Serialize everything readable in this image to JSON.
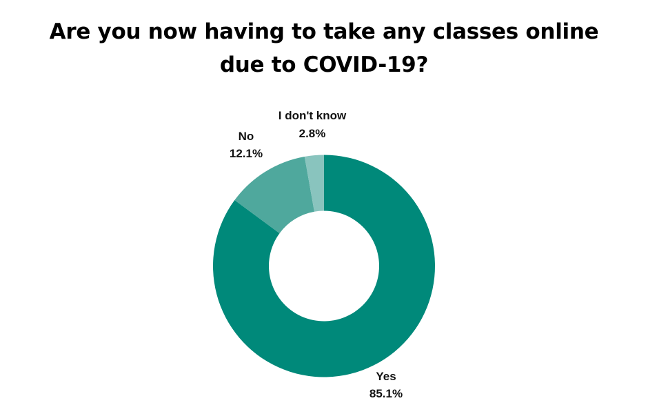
{
  "chart_data": {
    "type": "pie",
    "donut": true,
    "title_lines": [
      "Are you now having to take any classes online",
      "due to COVID-19?"
    ],
    "categories": [
      "Yes",
      "No",
      "I don't know"
    ],
    "values": [
      85.1,
      12.1,
      2.8
    ],
    "value_labels": [
      "85.1%",
      "12.1%",
      "2.8%"
    ],
    "colors": [
      "#00897A",
      "#4FA89D",
      "#89C4BE"
    ],
    "legend": "none"
  }
}
